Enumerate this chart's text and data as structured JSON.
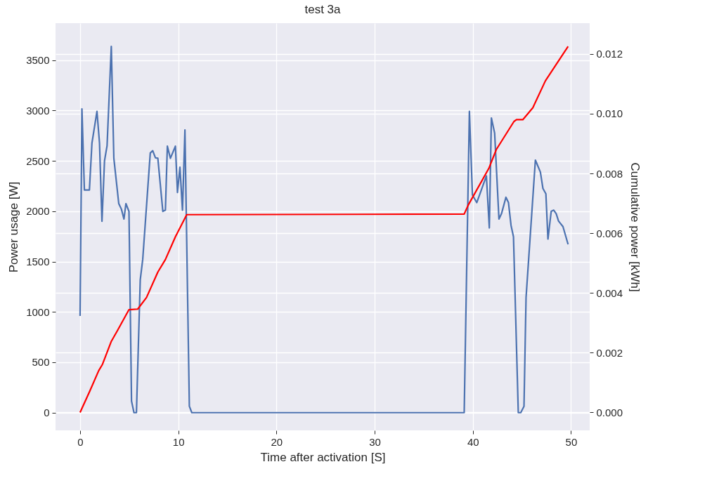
{
  "chart_data": {
    "type": "line",
    "title": "test 3a",
    "xlabel": "Time after activation [S]",
    "ylabel": "Power usage [W]",
    "y2label": "Cumulative power [kWh]",
    "grid": true,
    "xlim": [
      -2.5,
      51.9
    ],
    "xticks": [
      0,
      10,
      20,
      30,
      40,
      50
    ],
    "ylim": [
      -176,
      3866
    ],
    "yticks": [
      0,
      500,
      1000,
      1500,
      2000,
      2500,
      3000,
      3500
    ],
    "y2lim": [
      -0.0006,
      0.01303
    ],
    "y2ticks": [
      {
        "value": 0,
        "label": "0.000"
      },
      {
        "value": 0.002,
        "label": "0.002"
      },
      {
        "value": 0.004,
        "label": "0.004"
      },
      {
        "value": 0.006,
        "label": "0.006"
      },
      {
        "value": 0.008,
        "label": "0.008"
      },
      {
        "value": 0.01,
        "label": "0.010"
      },
      {
        "value": 0.012,
        "label": "0.012"
      }
    ],
    "series": [
      {
        "color": "#4c72b0",
        "x": [
          0,
          0.19,
          0.44,
          0.95,
          1.21,
          1.72,
          1.98,
          2.23,
          2.49,
          2.75,
          3.18,
          3.44,
          3.94,
          4.21,
          4.47,
          4.67,
          4.98,
          5.24,
          5.49,
          5.74,
          6.13,
          6.38,
          7.15,
          7.4,
          7.67,
          7.92,
          8.43,
          8.69,
          8.89,
          9.2,
          9.71,
          9.92,
          10.17,
          10.43,
          10.68,
          11.13,
          11.38,
          39.12,
          39.65,
          39.96,
          40.4,
          40.73,
          41.38,
          41.68,
          41.89,
          42.22,
          42.66,
          42.92,
          43.37,
          43.63,
          43.89,
          44.14,
          44.63,
          44.88,
          45.21,
          45.42,
          46.37,
          46.88,
          47.14,
          47.44,
          47.65,
          47.98,
          48.24,
          48.49,
          48.73,
          49.18,
          49.7
        ],
        "values": [
          960,
          3015,
          2210,
          2210,
          2676,
          2990,
          2676,
          1900,
          2500,
          2650,
          3636,
          2525,
          2075,
          2020,
          1922,
          2075,
          1998,
          115,
          0,
          0,
          1320,
          1520,
          2578,
          2600,
          2530,
          2525,
          1998,
          2010,
          2645,
          2525,
          2645,
          2185,
          2437,
          2010,
          2806,
          63,
          0,
          0,
          2990,
          2160,
          2085,
          2173,
          2350,
          1834,
          2925,
          2776,
          1922,
          1975,
          2138,
          2085,
          1859,
          1746,
          0,
          0,
          63,
          1143,
          2507,
          2388,
          2225,
          2173,
          1723,
          1998,
          2010,
          1975,
          1902,
          1847,
          1671
        ]
      },
      {
        "color": "#ff0000",
        "axis": "y2",
        "x": [
          0,
          1,
          1.9,
          2.28,
          3.18,
          3.82,
          4.98,
          5.87,
          6.77,
          7.92,
          8.69,
          9.71,
          10.86,
          39.12,
          39.53,
          41.63,
          42.39,
          44.19,
          44.45,
          45.09,
          46.11,
          47.39,
          49.7
        ],
        "values": [
          0,
          0.00072,
          0.0014,
          0.00161,
          0.00238,
          0.00275,
          0.00344,
          0.00346,
          0.00385,
          0.0047,
          0.00512,
          0.00588,
          0.00662,
          0.00664,
          0.00694,
          0.00817,
          0.0088,
          0.00974,
          0.0098,
          0.0098,
          0.0102,
          0.0111,
          0.01225
        ]
      }
    ]
  }
}
